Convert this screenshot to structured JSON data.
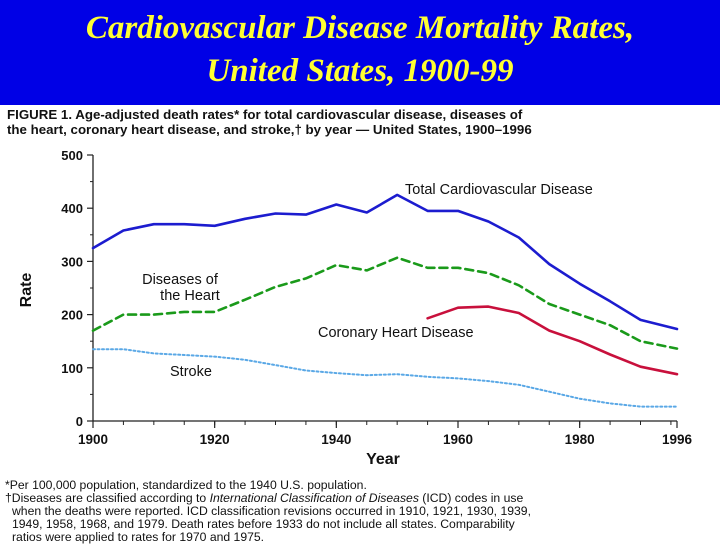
{
  "slide": {
    "title_line1": "Cardiovascular Disease Mortality Rates,",
    "title_line2": "United States, 1900-99"
  },
  "figure": {
    "caption_line1": "FIGURE 1. Age-adjusted death rates* for total cardiovascular disease, diseases of",
    "caption_line2": "the heart, coronary heart disease, and stroke,† by year — United States, 1900–1996"
  },
  "colors": {
    "banner": "#0000e6",
    "title": "#ffff33",
    "total_cvd": "#1c1ccf",
    "heart": "#1a9a1a",
    "chd": "#c8103c",
    "stroke": "#5aa8e6"
  },
  "chart_data": {
    "type": "line",
    "xlabel": "Year",
    "ylabel": "Rate",
    "xlim": [
      1900,
      1996
    ],
    "ylim": [
      0,
      500
    ],
    "xticks": [
      "1900",
      "1920",
      "1940",
      "1960",
      "1980",
      "1996"
    ],
    "yticks": [
      "0",
      "100",
      "200",
      "300",
      "400",
      "500"
    ],
    "series": [
      {
        "name": "Total Cardiovascular Disease",
        "style": "solid",
        "x": [
          1900,
          1905,
          1910,
          1915,
          1920,
          1925,
          1930,
          1935,
          1940,
          1945,
          1950,
          1955,
          1960,
          1965,
          1970,
          1975,
          1980,
          1985,
          1990,
          1996
        ],
        "y": [
          325,
          358,
          370,
          370,
          367,
          380,
          390,
          388,
          407,
          392,
          425,
          395,
          395,
          375,
          345,
          295,
          258,
          225,
          190,
          173
        ]
      },
      {
        "name": "Diseases of the Heart",
        "label_lines": [
          "Diseases of",
          "the Heart"
        ],
        "style": "dashed",
        "x": [
          1900,
          1905,
          1910,
          1915,
          1920,
          1925,
          1930,
          1935,
          1940,
          1945,
          1950,
          1955,
          1960,
          1965,
          1970,
          1975,
          1980,
          1985,
          1990,
          1996
        ],
        "y": [
          170,
          200,
          200,
          205,
          205,
          228,
          252,
          268,
          293,
          283,
          307,
          288,
          288,
          278,
          255,
          220,
          200,
          180,
          150,
          136
        ]
      },
      {
        "name": "Coronary Heart Disease",
        "style": "solid",
        "x": [
          1955,
          1960,
          1965,
          1970,
          1975,
          1980,
          1985,
          1990,
          1996
        ],
        "y": [
          193,
          213,
          215,
          203,
          170,
          150,
          125,
          102,
          88
        ]
      },
      {
        "name": "Stroke",
        "style": "dotted",
        "x": [
          1900,
          1905,
          1910,
          1915,
          1920,
          1925,
          1930,
          1935,
          1940,
          1945,
          1950,
          1955,
          1960,
          1965,
          1970,
          1975,
          1980,
          1985,
          1990,
          1996
        ],
        "y": [
          135,
          135,
          127,
          124,
          121,
          115,
          105,
          95,
          90,
          86,
          88,
          83,
          80,
          75,
          68,
          55,
          42,
          33,
          27,
          27
        ]
      }
    ]
  },
  "footnotes": {
    "note1": "*Per 100,000 population, standardized to the 1940 U.S. population.",
    "note2_a": "†Diseases are classified according to ",
    "note2_b": "International Classification of Diseases",
    "note2_c": " (ICD) codes in use",
    "note3": "when the deaths were reported. ICD classification revisions occurred in 1910, 1921, 1930, 1939,",
    "note4": "1949, 1958, 1968, and 1979. Death rates before 1933 do not include all states. Comparability",
    "note5": "ratios were applied to rates for 1970 and 1975."
  }
}
